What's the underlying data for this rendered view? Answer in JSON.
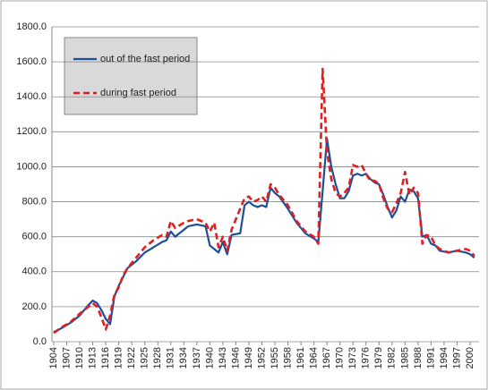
{
  "chart_data": {
    "type": "line",
    "x": [
      1904,
      1906,
      1908,
      1910,
      1912,
      1913,
      1914,
      1915,
      1916,
      1917,
      1918,
      1919,
      1920,
      1921,
      1923,
      1925,
      1927,
      1929,
      1930,
      1931,
      1932,
      1934,
      1935,
      1937,
      1939,
      1940,
      1941,
      1942,
      1943,
      1944,
      1945,
      1947,
      1948,
      1949,
      1950,
      1951,
      1952,
      1953,
      1954,
      1955,
      1956,
      1958,
      1960,
      1962,
      1964,
      1965,
      1966,
      1967,
      1968,
      1969,
      1970,
      1971,
      1972,
      1973,
      1974,
      1975,
      1976,
      1977,
      1978,
      1979,
      1980,
      1981,
      1982,
      1983,
      1984,
      1985,
      1986,
      1987,
      1988,
      1989,
      1990,
      1991,
      1992,
      1993,
      1995,
      1997,
      1999,
      2000,
      2001
    ],
    "series": [
      {
        "name": "out of the fast period",
        "color": "#1f4e99",
        "dash": false,
        "values": [
          55,
          80,
          110,
          150,
          210,
          235,
          220,
          180,
          130,
          100,
          260,
          320,
          370,
          420,
          460,
          510,
          540,
          570,
          580,
          630,
          600,
          640,
          660,
          670,
          660,
          550,
          530,
          510,
          570,
          500,
          610,
          620,
          780,
          800,
          780,
          770,
          780,
          770,
          880,
          850,
          830,
          760,
          680,
          620,
          590,
          570,
          860,
          1160,
          1000,
          900,
          820,
          820,
          860,
          950,
          960,
          950,
          960,
          930,
          910,
          900,
          840,
          770,
          710,
          750,
          830,
          800,
          870,
          860,
          820,
          600,
          610,
          560,
          550,
          520,
          510,
          520,
          510,
          500,
          480
        ]
      },
      {
        "name": "during fast period",
        "color": "#e02020",
        "dash": true,
        "values": [
          50,
          85,
          115,
          160,
          200,
          220,
          200,
          140,
          70,
          150,
          270,
          310,
          380,
          420,
          480,
          540,
          580,
          610,
          600,
          690,
          650,
          680,
          690,
          700,
          680,
          630,
          680,
          540,
          600,
          520,
          640,
          760,
          820,
          830,
          800,
          810,
          830,
          800,
          900,
          880,
          840,
          780,
          690,
          630,
          600,
          560,
          1560,
          1090,
          930,
          850,
          830,
          850,
          880,
          1010,
          1000,
          1010,
          960,
          920,
          920,
          900,
          820,
          760,
          740,
          790,
          850,
          970,
          840,
          880,
          850,
          560,
          610,
          600,
          550,
          530,
          510,
          520,
          530,
          520,
          490
        ]
      }
    ],
    "xlim": [
      1904,
      2002
    ],
    "xticks": [
      1904,
      1907,
      1910,
      1913,
      1916,
      1919,
      1922,
      1925,
      1928,
      1931,
      1934,
      1937,
      1940,
      1943,
      1946,
      1949,
      1952,
      1955,
      1958,
      1961,
      1964,
      1967,
      1970,
      1973,
      1976,
      1979,
      1982,
      1985,
      1988,
      1991,
      1994,
      1997,
      2000
    ],
    "ylim": [
      0,
      1800
    ],
    "yticks": [
      {
        "value": 0,
        "label": "0.0"
      },
      {
        "value": 200,
        "label": "200.0"
      },
      {
        "value": 400,
        "label": "400.0"
      },
      {
        "value": 600,
        "label": "600.0"
      },
      {
        "value": 800,
        "label": "800.0"
      },
      {
        "value": 1000,
        "label": "1000.0"
      },
      {
        "value": 1200,
        "label": "1200.0"
      },
      {
        "value": 1400,
        "label": "1400.0"
      },
      {
        "value": 1600,
        "label": "1600.0"
      },
      {
        "value": 1800,
        "label": "1800.0"
      }
    ],
    "grid": true
  }
}
